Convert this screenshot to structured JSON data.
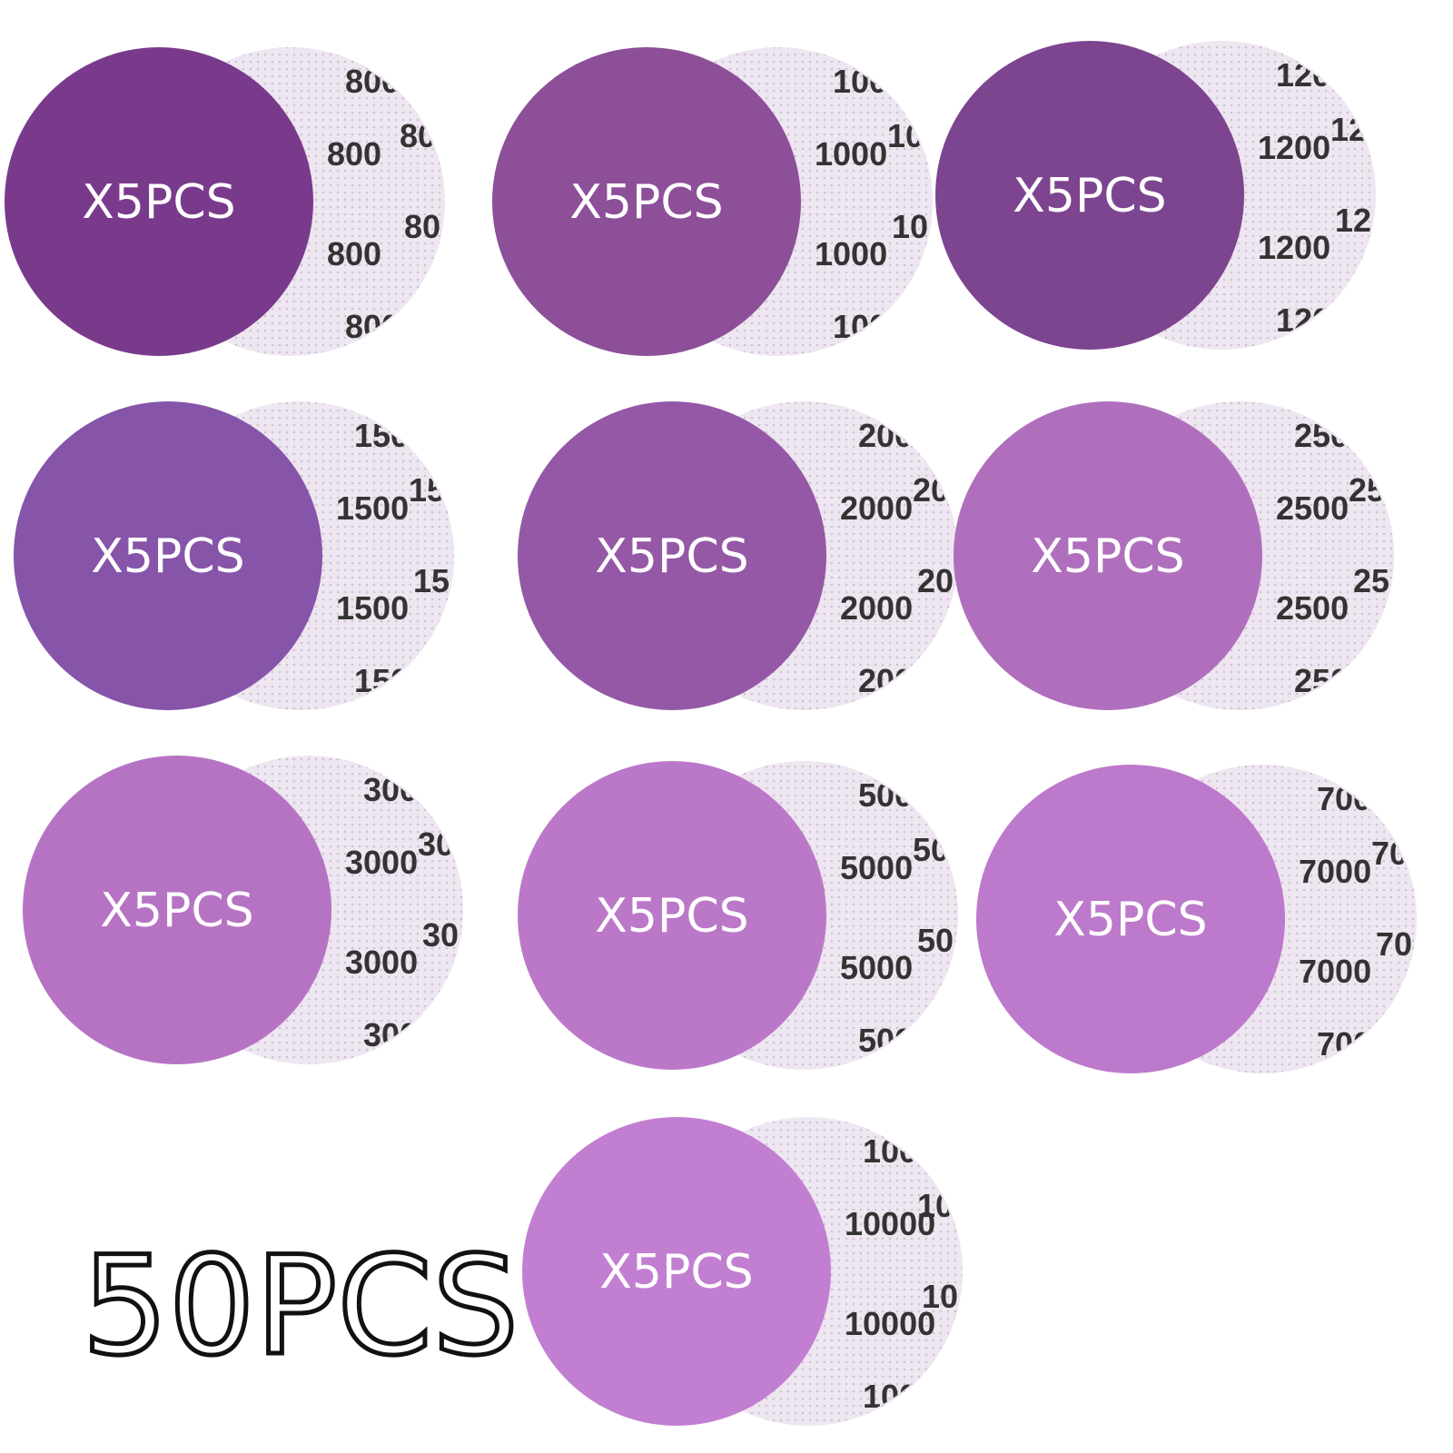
{
  "discs": [
    {
      "label": "X5PCS",
      "grit": "800",
      "color": "#7a3a8c"
    },
    {
      "label": "X5PCS",
      "grit": "1000",
      "color": "#8c4f98"
    },
    {
      "label": "X5PCS",
      "grit": "1200",
      "color": "#7d4490"
    },
    {
      "label": "X5PCS",
      "grit": "1500",
      "color": "#8654a8"
    },
    {
      "label": "X5PCS",
      "grit": "2000",
      "color": "#9458a6"
    },
    {
      "label": "X5PCS",
      "grit": "2500",
      "color": "#b06fbd"
    },
    {
      "label": "X5PCS",
      "grit": "3000",
      "color": "#b673c4"
    },
    {
      "label": "X5PCS",
      "grit": "5000",
      "color": "#bb78c8"
    },
    {
      "label": "X5PCS",
      "grit": "7000",
      "color": "#bd79cb"
    },
    {
      "label": "X5PCS",
      "grit": "10000",
      "color": "#c27fd2"
    }
  ],
  "total": "50PCS"
}
